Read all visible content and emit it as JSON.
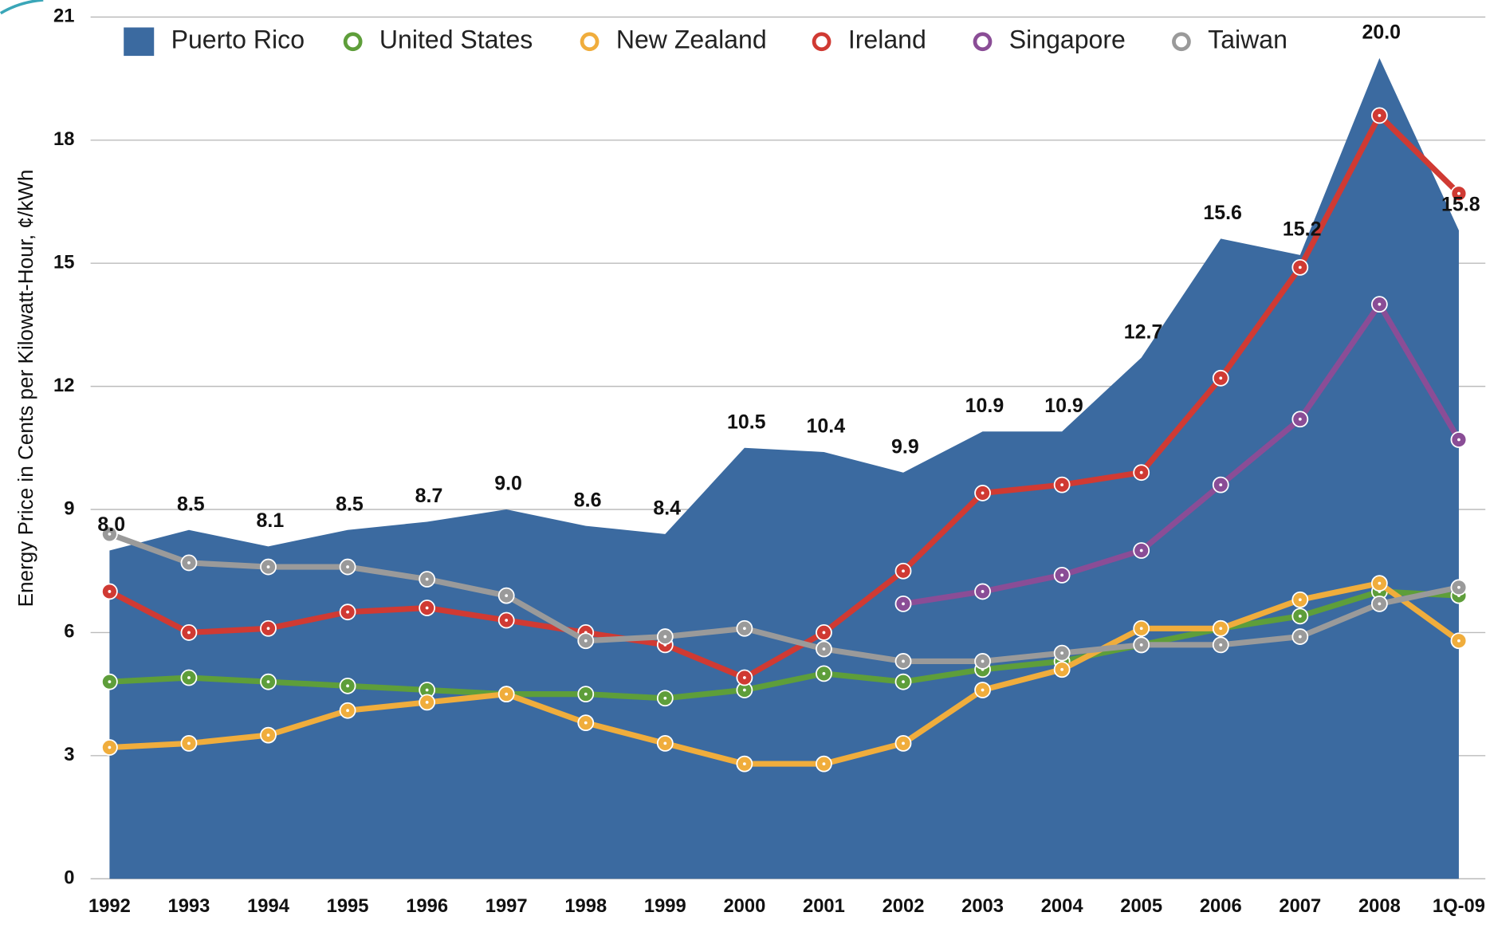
{
  "chart_data": {
    "type": "area-line",
    "y_label": "Energy Price in Cents per Kilowatt-Hour, ¢/kWh",
    "categories": [
      "1992",
      "1993",
      "1994",
      "1995",
      "1996",
      "1997",
      "1998",
      "1999",
      "2000",
      "2001",
      "2002",
      "2003",
      "2004",
      "2005",
      "2006",
      "2007",
      "2008",
      "1Q-09"
    ],
    "ylim": [
      0,
      21
    ],
    "yticks": [
      0,
      3,
      6,
      9,
      12,
      15,
      18,
      21
    ],
    "grid": true,
    "legend": "top",
    "series": [
      {
        "name": "Puerto Rico",
        "color": "#3b6aa0",
        "kind": "area",
        "values": [
          8.0,
          8.5,
          8.1,
          8.5,
          8.7,
          9.0,
          8.6,
          8.4,
          10.5,
          10.4,
          9.9,
          10.9,
          10.9,
          12.7,
          15.6,
          15.2,
          20.0,
          15.8
        ],
        "value_labels": [
          "8.0",
          "8.5",
          "8.1",
          "8.5",
          "8.7",
          "9.0",
          "8.6",
          "8.4",
          "10.5",
          "10.4",
          "9.9",
          "10.9",
          "10.9",
          "12.7",
          "15.6",
          "15.2",
          "20.0",
          "15.8"
        ]
      },
      {
        "name": "United States",
        "color": "#5e9e3a",
        "kind": "line",
        "values": [
          4.8,
          4.9,
          4.8,
          4.7,
          4.6,
          4.5,
          4.5,
          4.4,
          4.6,
          5.0,
          4.8,
          5.1,
          5.3,
          5.7,
          6.1,
          6.4,
          7.0,
          6.9
        ]
      },
      {
        "name": "New Zealand",
        "color": "#f0ad3c",
        "kind": "line",
        "values": [
          3.2,
          3.3,
          3.5,
          4.1,
          4.3,
          4.5,
          3.8,
          3.3,
          2.8,
          2.8,
          3.3,
          4.6,
          5.1,
          6.1,
          6.1,
          6.8,
          7.2,
          5.8
        ]
      },
      {
        "name": "Ireland",
        "color": "#d03a33",
        "kind": "line",
        "values": [
          7.0,
          6.0,
          6.1,
          6.5,
          6.6,
          6.3,
          6.0,
          5.7,
          4.9,
          6.0,
          7.5,
          9.4,
          9.6,
          9.9,
          12.2,
          14.9,
          18.6,
          16.7
        ]
      },
      {
        "name": "Singapore",
        "color": "#8a4d96",
        "kind": "line",
        "values": [
          null,
          null,
          null,
          null,
          null,
          null,
          null,
          null,
          null,
          null,
          6.7,
          7.0,
          7.4,
          8.0,
          9.6,
          11.2,
          14.0,
          10.7
        ]
      },
      {
        "name": "Taiwan",
        "color": "#9a9a9a",
        "kind": "line",
        "values": [
          8.4,
          7.7,
          7.6,
          7.6,
          7.3,
          6.9,
          5.8,
          5.9,
          6.1,
          5.6,
          5.3,
          5.3,
          5.5,
          5.7,
          5.7,
          5.9,
          6.7,
          7.1
        ]
      }
    ]
  }
}
